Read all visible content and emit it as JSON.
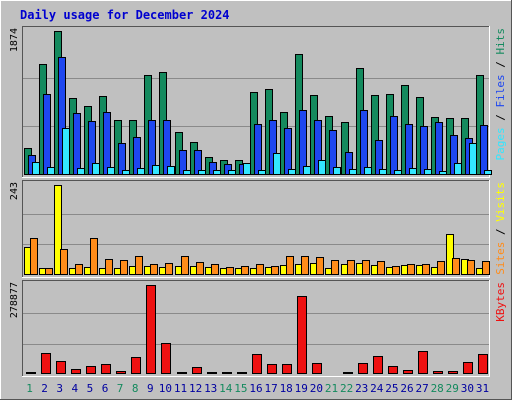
{
  "title": "Daily usage for December 2024",
  "colors": {
    "background": "#c0c0c0",
    "hits": "#148a5e",
    "files": "#1e47f0",
    "pages": "#33e6ff",
    "visits": "#ffff00",
    "sites": "#ff8c1a",
    "kbytes": "#ee1111",
    "weekday_label": "#0000a0",
    "weekend_label": "#148a5e",
    "title_text": "#0000d0"
  },
  "chart_data": [
    {
      "type": "bar",
      "title": "Daily usage for December 2024",
      "categories": [
        "1",
        "2",
        "3",
        "4",
        "5",
        "6",
        "7",
        "8",
        "9",
        "10",
        "11",
        "12",
        "13",
        "14",
        "15",
        "16",
        "17",
        "18",
        "19",
        "20",
        "21",
        "22",
        "23",
        "24",
        "25",
        "26",
        "27",
        "28",
        "29",
        "30",
        "31"
      ],
      "weekend_days": [
        "1",
        "7",
        "8",
        "14",
        "15",
        "21",
        "22",
        "28",
        "29"
      ],
      "ymax_label": "1874",
      "ylim": [
        0,
        1874
      ],
      "ylabel_parts": [
        "Pages",
        "Files",
        "Hits"
      ],
      "series": [
        {
          "name": "Hits",
          "values": [
            350,
            1440,
            1874,
            1000,
            900,
            1030,
            720,
            720,
            1300,
            1340,
            560,
            430,
            240,
            190,
            200,
            1080,
            1120,
            820,
            1580,
            1040,
            770,
            690,
            1390,
            1040,
            1050,
            1170,
            1020,
            760,
            740,
            740,
            1300
          ]
        },
        {
          "name": "Files",
          "values": [
            260,
            1050,
            1540,
            810,
            700,
            820,
            420,
            490,
            720,
            720,
            320,
            330,
            170,
            140,
            140,
            670,
            720,
            610,
            850,
            710,
            580,
            300,
            850,
            450,
            770,
            670,
            640,
            690,
            520,
            480,
            650
          ]
        },
        {
          "name": "Pages",
          "values": [
            170,
            100,
            610,
            90,
            150,
            110,
            60,
            90,
            130,
            120,
            60,
            70,
            70,
            70,
            150,
            60,
            290,
            80,
            120,
            200,
            110,
            80,
            110,
            80,
            60,
            90,
            80,
            50,
            160,
            410,
            70
          ]
        }
      ]
    },
    {
      "type": "bar",
      "ymax_label": "243",
      "ylim": [
        0,
        243
      ],
      "ylabel_parts": [
        "Sites",
        "Visits"
      ],
      "series": [
        {
          "name": "Visits",
          "values": [
            75,
            20,
            243,
            20,
            22,
            20,
            20,
            23,
            23,
            22,
            24,
            23,
            22,
            20,
            19,
            20,
            21,
            26,
            30,
            32,
            20,
            30,
            32,
            28,
            21,
            26,
            26,
            21,
            110,
            42,
            20
          ]
        },
        {
          "name": "Sites",
          "values": [
            100,
            20,
            70,
            30,
            101,
            42,
            40,
            50,
            30,
            33,
            51,
            35,
            30,
            22,
            24,
            30,
            25,
            50,
            50,
            49,
            40,
            40,
            40,
            38,
            25,
            30,
            30,
            38,
            45,
            40,
            37
          ]
        }
      ]
    },
    {
      "type": "bar",
      "ymax_label": "278877",
      "ylim": [
        0,
        278877
      ],
      "ylabel_parts": [
        "KBytes"
      ],
      "series": [
        {
          "name": "KBytes",
          "values": [
            5000,
            66000,
            40000,
            15000,
            26000,
            32000,
            10000,
            52000,
            278877,
            98000,
            6000,
            23000,
            5000,
            5000,
            5000,
            64000,
            30000,
            31000,
            244000,
            34000,
            4000,
            5000,
            36000,
            57000,
            25000,
            14000,
            72000,
            9000,
            9000,
            38000,
            64000
          ]
        }
      ]
    }
  ]
}
